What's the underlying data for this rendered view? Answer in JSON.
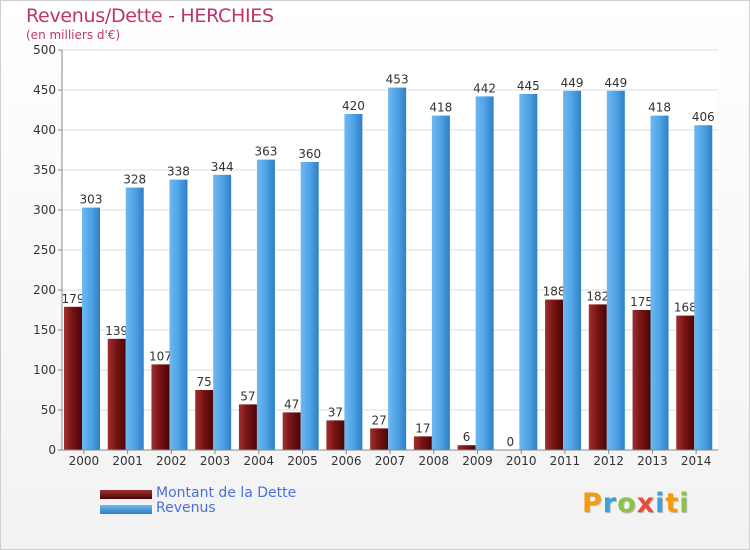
{
  "chart_data": {
    "type": "bar",
    "title": "Revenus/Dette - HERCHIES",
    "subtitle": "(en milliers d'€)",
    "categories": [
      "2000",
      "2001",
      "2002",
      "2003",
      "2004",
      "2005",
      "2006",
      "2007",
      "2008",
      "2009",
      "2010",
      "2011",
      "2012",
      "2013",
      "2014"
    ],
    "series": [
      {
        "name": "Montant de la Dette",
        "color": "#7a1010",
        "values": [
          179,
          139,
          107,
          75,
          57,
          47,
          37,
          27,
          17,
          6,
          0,
          188,
          182,
          175,
          168
        ]
      },
      {
        "name": "Revenus",
        "color": "#4fa3e6",
        "values": [
          303,
          328,
          338,
          344,
          363,
          360,
          420,
          453,
          418,
          442,
          445,
          449,
          449,
          418,
          406
        ]
      }
    ],
    "ylim": [
      0,
      500
    ],
    "yticks": [
      "0",
      "50",
      "100",
      "150",
      "200",
      "250",
      "300",
      "350",
      "400",
      "450",
      "500"
    ],
    "grid": true,
    "legend_position": "bottom-left"
  },
  "logo": {
    "letters": [
      {
        "char": "P",
        "color": "#f39c12"
      },
      {
        "char": "r",
        "color": "#3aa0e0"
      },
      {
        "char": "o",
        "color": "#8bc34a"
      },
      {
        "char": "x",
        "color": "#e74c3c"
      },
      {
        "char": "i",
        "color": "#3aa0e0"
      },
      {
        "char": "t",
        "color": "#f39c12"
      },
      {
        "char": "i",
        "color": "#8bc34a"
      }
    ]
  }
}
